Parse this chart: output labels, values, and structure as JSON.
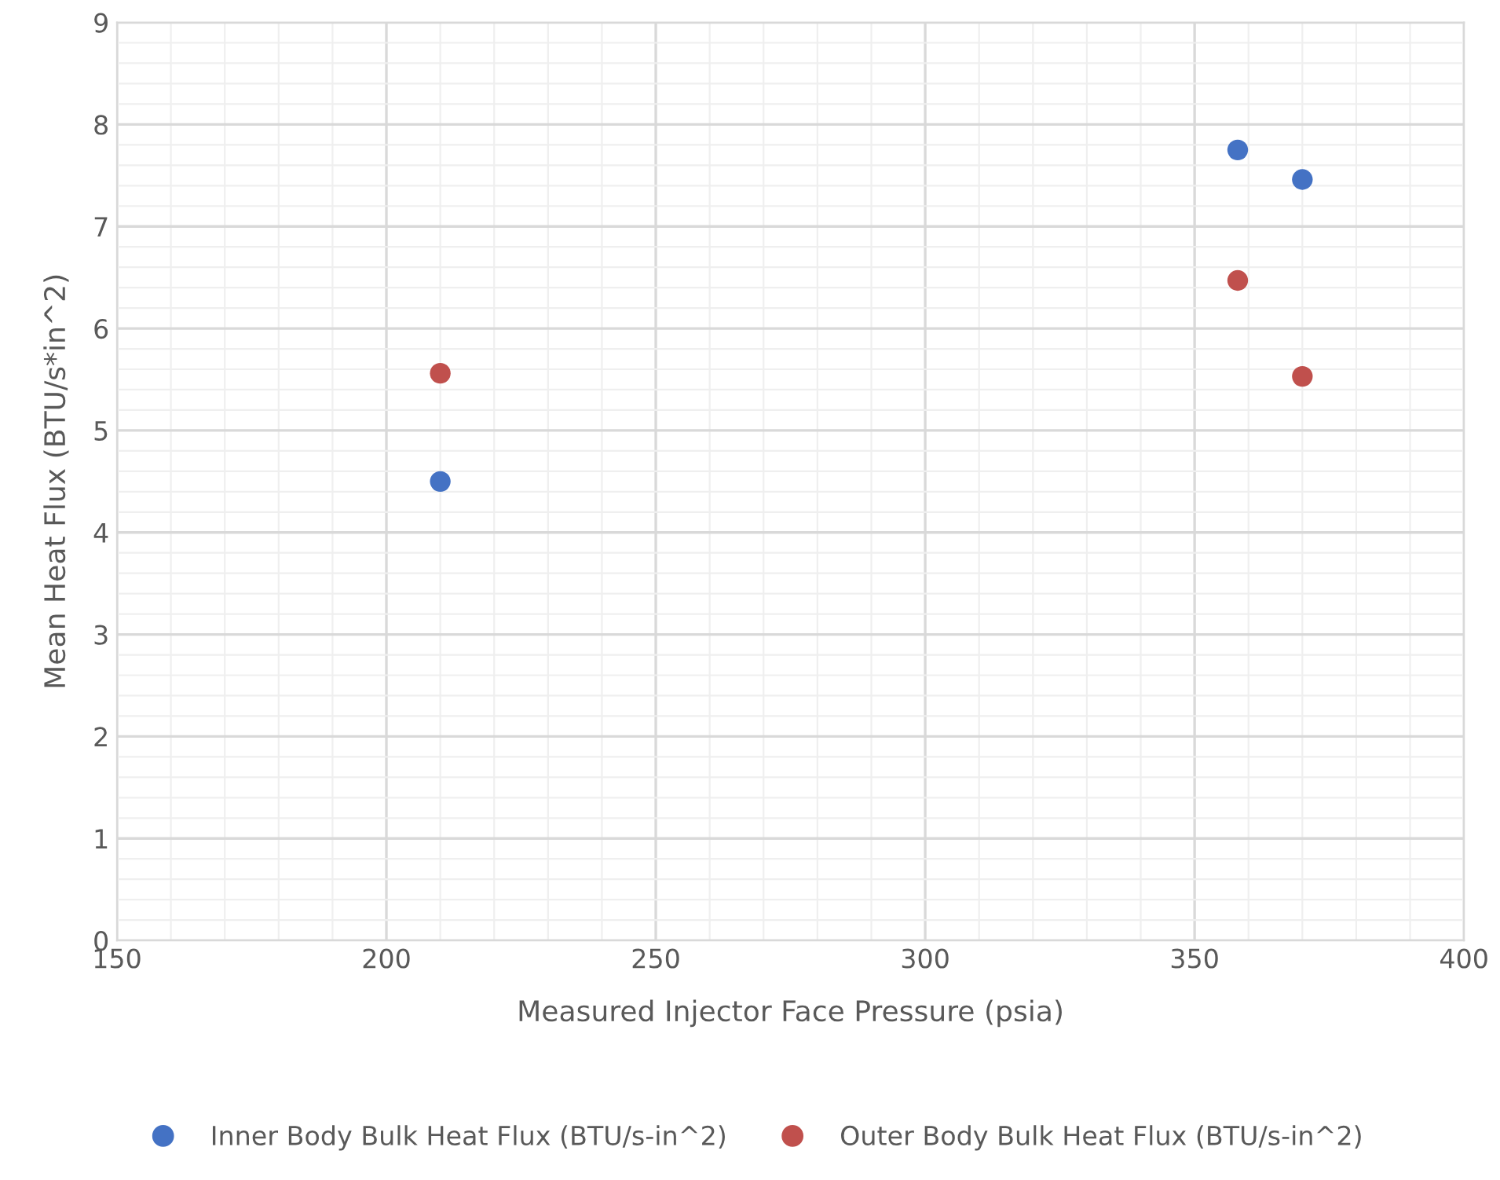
{
  "chart_data": {
    "type": "scatter",
    "xlabel": "Measured Injector Face Pressure (psia)",
    "ylabel": "Mean Heat Flux (BTU/s*in^2)",
    "series": [
      {
        "name": "Inner Body Bulk Heat Flux (BTU/s-in^2)",
        "color": "#4472c4",
        "x": [
          210,
          358,
          370
        ],
        "values": [
          4.5,
          7.75,
          7.46
        ]
      },
      {
        "name": "Outer Body Bulk Heat Flux (BTU/s-in^2)",
        "color": "#c0504d",
        "x": [
          210,
          358,
          370
        ],
        "values": [
          5.56,
          6.47,
          5.53
        ]
      }
    ],
    "xlim": [
      150,
      400
    ],
    "xticks": [
      150,
      200,
      250,
      300,
      350,
      400
    ],
    "ylim": [
      0,
      9
    ],
    "yticks": [
      0,
      1,
      2,
      3,
      4,
      5,
      6,
      7,
      8,
      9
    ],
    "grid": true,
    "legend": "bottom",
    "marker": "circle"
  }
}
